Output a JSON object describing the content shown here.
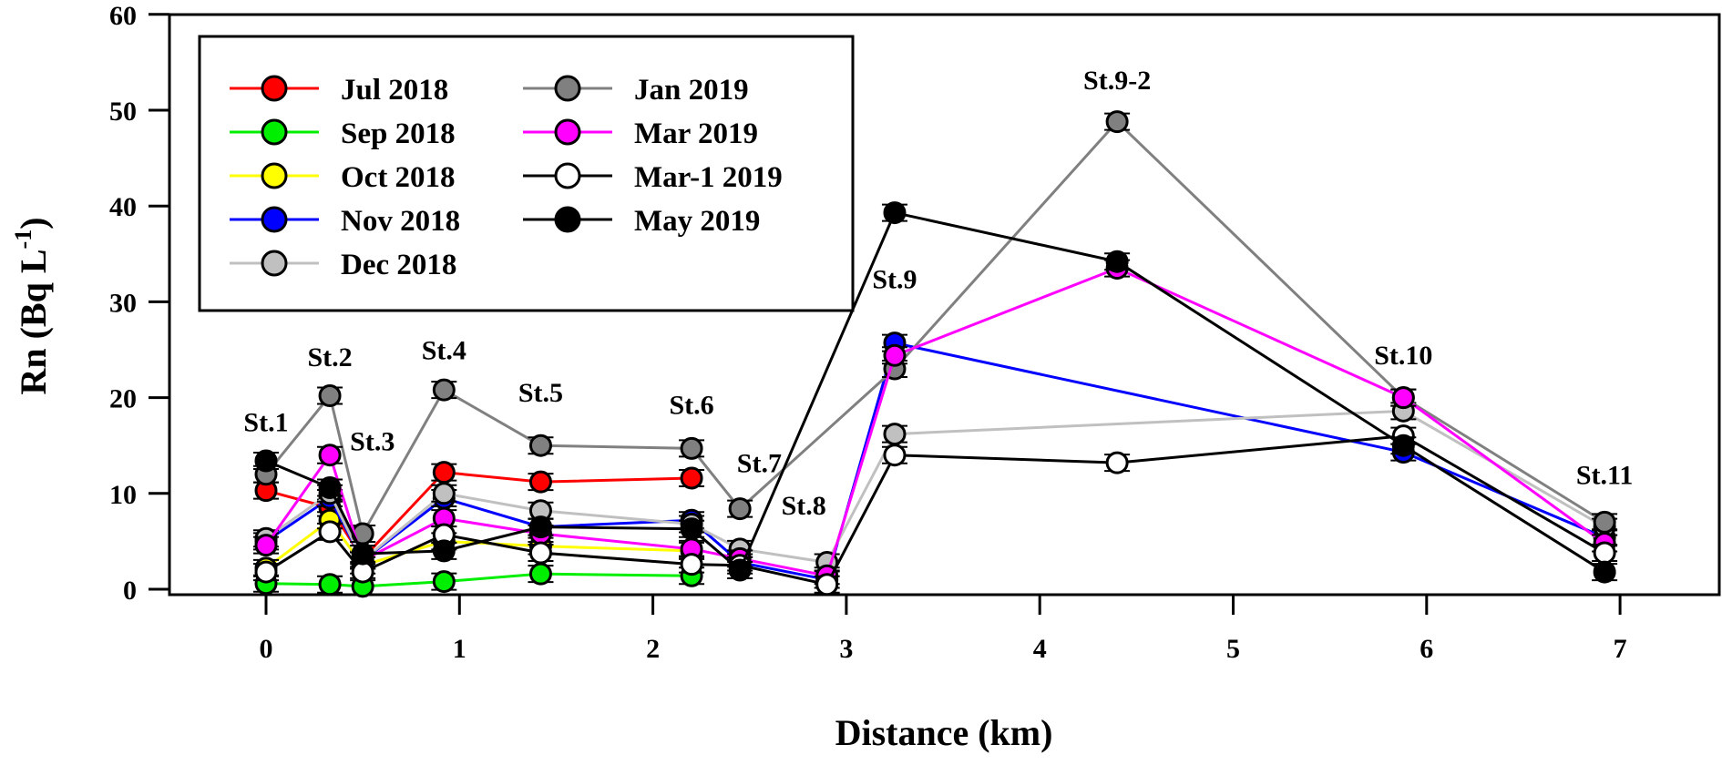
{
  "chart_data": {
    "type": "line",
    "title": "",
    "xlabel": "Distance (km)",
    "ylabel": "Rn (Bq L",
    "ylabel_superscript": "-1",
    "ylabel_suffix": ")",
    "xlim": [
      -0.5,
      7.6
    ],
    "ylim": [
      0,
      60
    ],
    "xticks": [
      0,
      1,
      2,
      3,
      4,
      5,
      6,
      7
    ],
    "yticks": [
      0,
      10,
      20,
      30,
      40,
      50,
      60
    ],
    "grid": false,
    "legend_position": "top-left",
    "stations": [
      {
        "label": "St.1",
        "x": 0.0,
        "label_y": 16.5
      },
      {
        "label": "St.2",
        "x": 0.33,
        "label_y": 23.3
      },
      {
        "label": "St.3",
        "x": 0.55,
        "label_y": 14.5
      },
      {
        "label": "St.4",
        "x": 0.92,
        "label_y": 24.0
      },
      {
        "label": "St.5",
        "x": 1.42,
        "label_y": 19.6
      },
      {
        "label": "St.6",
        "x": 2.2,
        "label_y": 18.3
      },
      {
        "label": "St.7",
        "x": 2.55,
        "label_y": 12.2
      },
      {
        "label": "St.8",
        "x": 2.78,
        "label_y": 7.8
      },
      {
        "label": "St.9",
        "x": 3.25,
        "label_y": 31.4
      },
      {
        "label": "St.9-2",
        "x": 4.4,
        "label_y": 52.2
      },
      {
        "label": "St.10",
        "x": 5.88,
        "label_y": 23.5
      },
      {
        "label": "St.11",
        "x": 6.92,
        "label_y": 11.0
      }
    ],
    "series": [
      {
        "name": "Jul 2018",
        "color": "#ff0000",
        "marker": "#ff0000",
        "x": [
          0,
          0.33,
          0.5,
          0.92,
          1.42,
          2.2
        ],
        "y": [
          10.3,
          8.5,
          3.2,
          12.2,
          11.2,
          11.6
        ]
      },
      {
        "name": "Sep 2018",
        "color": "#00ee00",
        "marker": "#00ee00",
        "x": [
          0,
          0.33,
          0.5,
          0.92,
          1.42,
          2.2
        ],
        "y": [
          0.6,
          0.5,
          0.3,
          0.8,
          1.6,
          1.4
        ]
      },
      {
        "name": "Oct 2018",
        "color": "#ffff00",
        "marker": "#ffff00",
        "x": [
          0,
          0.33,
          0.5,
          0.92,
          1.42,
          2.2
        ],
        "y": [
          2.2,
          7.2,
          2.5,
          5.0,
          4.5,
          4.0
        ]
      },
      {
        "name": "Nov 2018",
        "color": "#0000ff",
        "marker": "#0000ff",
        "x": [
          0,
          0.33,
          0.5,
          0.92,
          1.42,
          2.2,
          2.45,
          2.9,
          3.25,
          5.88,
          6.92
        ],
        "y": [
          5.0,
          9.5,
          3.0,
          9.5,
          6.5,
          7.2,
          2.8,
          1.0,
          25.7,
          14.3,
          5.4
        ]
      },
      {
        "name": "Dec 2018",
        "color": "#c0c0c0",
        "marker": "#c0c0c0",
        "x": [
          0,
          0.33,
          0.5,
          0.92,
          1.42,
          2.2,
          2.45,
          2.9,
          3.25,
          5.88,
          6.92
        ],
        "y": [
          5.3,
          10.0,
          3.0,
          10.0,
          8.2,
          6.8,
          4.2,
          2.8,
          16.2,
          18.6,
          6.5
        ]
      },
      {
        "name": "Jan 2019",
        "color": "#808080",
        "marker": "#808080",
        "x": [
          0,
          0.33,
          0.5,
          0.92,
          1.42,
          2.2,
          2.45,
          3.25,
          4.4,
          5.88,
          6.92
        ],
        "y": [
          12.0,
          20.2,
          5.8,
          20.8,
          15.0,
          14.7,
          8.4,
          23.0,
          48.8,
          20.0,
          7.0
        ]
      },
      {
        "name": "Mar 2019",
        "color": "#ff00ff",
        "marker": "#ff00ff",
        "x": [
          0,
          0.33,
          0.5,
          0.92,
          1.42,
          2.2,
          2.45,
          2.9,
          3.25,
          4.4,
          5.88,
          6.92
        ],
        "y": [
          4.6,
          14.0,
          3.0,
          7.4,
          5.8,
          4.2,
          3.2,
          1.4,
          24.4,
          33.5,
          20.0,
          4.8
        ]
      },
      {
        "name": "Mar-1 2019",
        "color": "#000000",
        "marker": "#ffffff",
        "x": [
          0,
          0.33,
          0.5,
          0.92,
          1.42,
          2.2,
          2.45,
          2.9,
          3.25,
          4.4,
          5.88,
          6.92
        ],
        "y": [
          1.8,
          6.0,
          1.8,
          5.7,
          3.8,
          2.6,
          2.5,
          0.5,
          14.0,
          13.2,
          16.0,
          3.8
        ]
      },
      {
        "name": "May 2019",
        "color": "#000000",
        "marker": "#000000",
        "x": [
          0,
          0.33,
          0.5,
          0.92,
          1.42,
          2.2,
          2.45,
          3.25,
          4.4,
          5.88,
          6.92
        ],
        "y": [
          13.4,
          10.6,
          3.7,
          4.0,
          6.5,
          6.3,
          2.0,
          39.3,
          34.2,
          15.0,
          1.8
        ]
      }
    ]
  }
}
